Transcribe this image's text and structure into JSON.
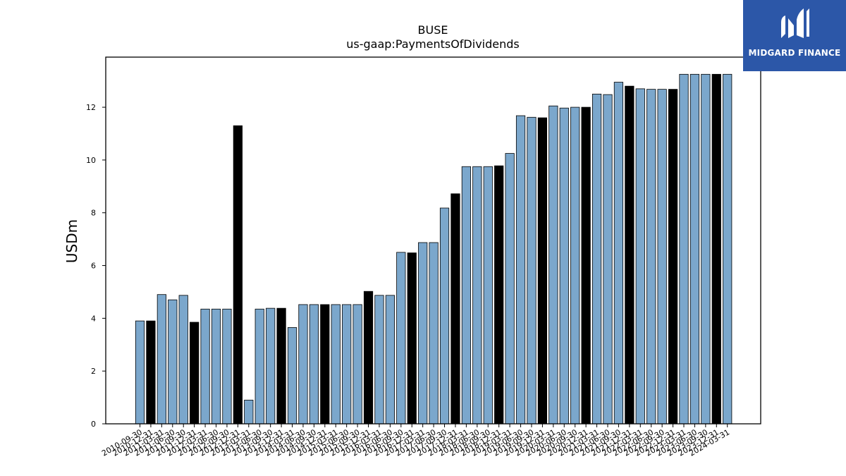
{
  "brand": {
    "logo_text": "MIDGARD FINANCE",
    "logo_bg": "#2c57a8",
    "logo_icon": "midgard-m-icon"
  },
  "chart_data": {
    "type": "bar",
    "title": "BUSE",
    "subtitle": "us-gaap:PaymentsOfDividends",
    "xlabel": "",
    "ylabel": "USDm",
    "ylim": [
      0,
      13.9
    ],
    "yticks": [
      0,
      2,
      4,
      6,
      8,
      10,
      12
    ],
    "grid": false,
    "legend": "none",
    "colors": {
      "quarter": "#7ba7cc",
      "year_end": "#000000",
      "edge": "#000000"
    },
    "categories": [
      "2010-09-30",
      "2010-12-31",
      "2011-03-31",
      "2011-06-30",
      "2011-09-30",
      "2011-12-31",
      "2012-03-31",
      "2012-06-30",
      "2012-09-30",
      "2012-12-31",
      "2013-03-31",
      "2013-06-30",
      "2013-09-30",
      "2013-12-31",
      "2014-03-31",
      "2014-06-30",
      "2014-09-30",
      "2014-12-31",
      "2015-03-31",
      "2015-06-30",
      "2015-09-30",
      "2015-12-31",
      "2016-03-31",
      "2016-06-30",
      "2016-09-30",
      "2016-12-31",
      "2017-03-31",
      "2017-06-30",
      "2017-09-30",
      "2017-12-31",
      "2018-03-31",
      "2018-06-30",
      "2018-09-30",
      "2018-12-31",
      "2019-03-31",
      "2019-06-30",
      "2019-09-30",
      "2019-12-31",
      "2020-03-31",
      "2020-06-30",
      "2020-09-30",
      "2020-12-31",
      "2021-03-31",
      "2021-06-30",
      "2021-09-30",
      "2021-12-31",
      "2022-03-31",
      "2022-06-30",
      "2022-09-30",
      "2022-12-31",
      "2023-03-31",
      "2023-06-30",
      "2023-09-30",
      "2023-12-31",
      "2024-03-31"
    ],
    "values": [
      3.9,
      3.9,
      4.9,
      4.7,
      4.87,
      3.85,
      4.35,
      4.35,
      4.35,
      11.3,
      0.9,
      4.35,
      4.38,
      4.38,
      3.65,
      4.52,
      4.52,
      4.52,
      4.52,
      4.52,
      4.52,
      5.02,
      4.87,
      4.87,
      6.5,
      6.48,
      6.87,
      6.87,
      8.18,
      8.72,
      9.75,
      9.75,
      9.75,
      9.78,
      10.25,
      11.68,
      11.62,
      11.6,
      12.05,
      11.97,
      12.0,
      12.0,
      12.5,
      12.48,
      12.95,
      12.8,
      12.7,
      12.68,
      12.68,
      12.68,
      13.25,
      13.25,
      13.25,
      13.25,
      13.25
    ],
    "highlight": [
      false,
      true,
      false,
      false,
      false,
      true,
      false,
      false,
      false,
      true,
      false,
      false,
      false,
      true,
      false,
      false,
      false,
      true,
      false,
      false,
      false,
      true,
      false,
      false,
      false,
      true,
      false,
      false,
      false,
      true,
      false,
      false,
      false,
      true,
      false,
      false,
      false,
      true,
      false,
      false,
      false,
      true,
      false,
      false,
      false,
      true,
      false,
      false,
      false,
      true,
      false,
      false,
      false,
      true,
      false
    ]
  }
}
